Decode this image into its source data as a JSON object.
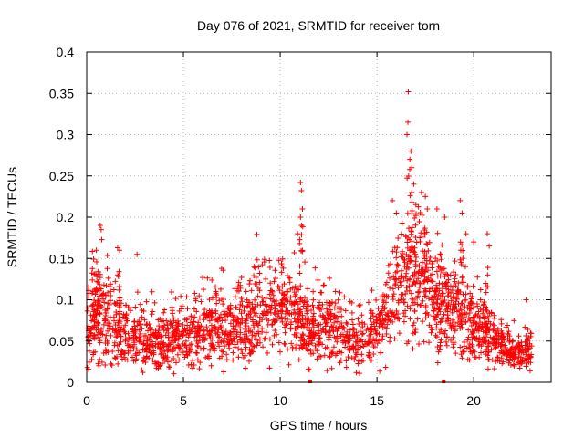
{
  "chart_data": {
    "type": "scatter",
    "title": "Day 076 of 2021, SRMTID for receiver torn",
    "xlabel": "GPS time / hours",
    "ylabel": "SRMTID / TECUs",
    "xlim": [
      0,
      24
    ],
    "ylim": [
      0,
      0.4
    ],
    "xticks": [
      0,
      5,
      10,
      15,
      20
    ],
    "xtick_labels": [
      "0",
      "5",
      "10",
      "15",
      "20"
    ],
    "yticks": [
      0,
      0.05,
      0.1,
      0.15,
      0.2,
      0.25,
      0.3,
      0.35,
      0.4
    ],
    "ytick_labels": [
      "0",
      "0.05",
      "0.1",
      "0.15",
      "0.2",
      "0.25",
      "0.3",
      "0.35",
      "0.4"
    ],
    "grid": true,
    "marker": "plus",
    "color": "#ff0000",
    "series": [
      {
        "name": "SRMTID",
        "envelope": {
          "x_hours": [
            0.0,
            0.5,
            1.0,
            1.5,
            2.0,
            2.5,
            3.0,
            3.5,
            4.0,
            4.5,
            5.0,
            5.5,
            6.0,
            6.5,
            7.0,
            7.5,
            8.0,
            8.5,
            9.0,
            9.5,
            10.0,
            10.5,
            11.0,
            11.5,
            12.0,
            12.5,
            13.0,
            13.5,
            14.0,
            14.5,
            15.0,
            15.5,
            16.0,
            16.5,
            17.0,
            17.5,
            18.0,
            18.5,
            19.0,
            19.5,
            20.0,
            20.5,
            21.0,
            21.5,
            22.0,
            22.5,
            23.0
          ],
          "typical_tecu": [
            0.07,
            0.08,
            0.075,
            0.07,
            0.06,
            0.05,
            0.05,
            0.05,
            0.05,
            0.05,
            0.055,
            0.06,
            0.065,
            0.065,
            0.065,
            0.065,
            0.07,
            0.075,
            0.08,
            0.085,
            0.09,
            0.085,
            0.07,
            0.065,
            0.07,
            0.07,
            0.06,
            0.05,
            0.05,
            0.05,
            0.07,
            0.09,
            0.11,
            0.12,
            0.13,
            0.12,
            0.1,
            0.09,
            0.085,
            0.08,
            0.07,
            0.06,
            0.05,
            0.045,
            0.035,
            0.035,
            0.045
          ],
          "spread_tecu": [
            0.03,
            0.035,
            0.035,
            0.03,
            0.025,
            0.02,
            0.02,
            0.02,
            0.02,
            0.02,
            0.02,
            0.025,
            0.025,
            0.025,
            0.025,
            0.025,
            0.025,
            0.03,
            0.03,
            0.03,
            0.03,
            0.03,
            0.025,
            0.025,
            0.025,
            0.025,
            0.02,
            0.02,
            0.02,
            0.02,
            0.025,
            0.03,
            0.035,
            0.04,
            0.045,
            0.04,
            0.035,
            0.03,
            0.03,
            0.03,
            0.025,
            0.02,
            0.02,
            0.015,
            0.012,
            0.012,
            0.015
          ]
        },
        "outliers": [
          {
            "x": 0.5,
            "y": 0.16
          },
          {
            "x": 0.7,
            "y": 0.19
          },
          {
            "x": 0.75,
            "y": 0.185
          },
          {
            "x": 1.6,
            "y": 0.163
          },
          {
            "x": 1.7,
            "y": 0.16
          },
          {
            "x": 2.6,
            "y": 0.155
          },
          {
            "x": 11.05,
            "y": 0.242
          },
          {
            "x": 11.1,
            "y": 0.232
          },
          {
            "x": 11.05,
            "y": 0.2
          },
          {
            "x": 11.1,
            "y": 0.19
          },
          {
            "x": 11.15,
            "y": 0.21
          },
          {
            "x": 10.9,
            "y": 0.18
          },
          {
            "x": 16.6,
            "y": 0.315
          },
          {
            "x": 16.55,
            "y": 0.3
          },
          {
            "x": 16.62,
            "y": 0.352
          },
          {
            "x": 16.7,
            "y": 0.27
          },
          {
            "x": 16.75,
            "y": 0.28
          },
          {
            "x": 16.8,
            "y": 0.26
          },
          {
            "x": 16.8,
            "y": 0.23
          },
          {
            "x": 16.9,
            "y": 0.24
          },
          {
            "x": 17.3,
            "y": 0.23
          },
          {
            "x": 17.5,
            "y": 0.225
          },
          {
            "x": 17.6,
            "y": 0.21
          },
          {
            "x": 15.8,
            "y": 0.22
          },
          {
            "x": 16.0,
            "y": 0.205
          },
          {
            "x": 18.1,
            "y": 0.21
          },
          {
            "x": 18.5,
            "y": 0.2
          },
          {
            "x": 19.3,
            "y": 0.22
          },
          {
            "x": 19.4,
            "y": 0.205
          },
          {
            "x": 19.6,
            "y": 0.18
          },
          {
            "x": 20.0,
            "y": 0.17
          },
          {
            "x": 20.7,
            "y": 0.18
          },
          {
            "x": 20.8,
            "y": 0.165
          },
          {
            "x": 22.7,
            "y": 0.1
          },
          {
            "x": 11.5,
            "y": 0.015
          },
          {
            "x": 2.9,
            "y": 0.012
          }
        ],
        "baseline_markers": [
          {
            "x": 11.55,
            "y": 0.0
          },
          {
            "x": 18.45,
            "y": 0.0
          }
        ]
      }
    ]
  }
}
